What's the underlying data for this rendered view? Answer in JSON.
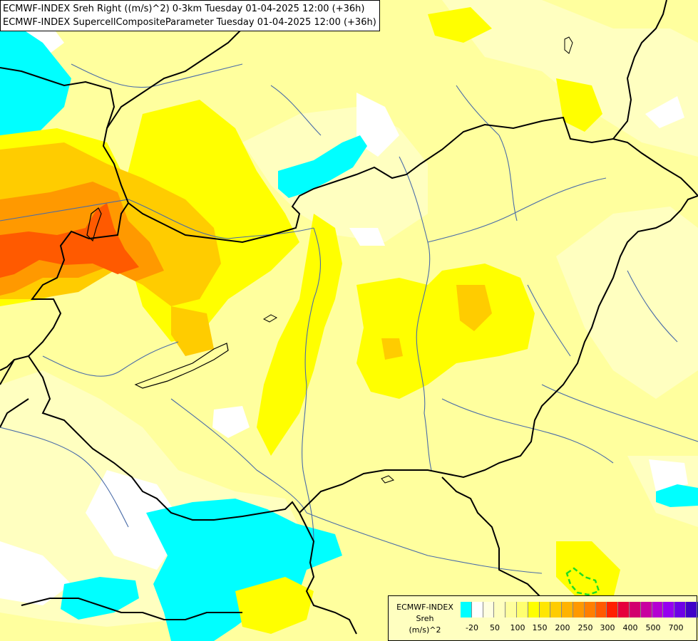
{
  "titles": {
    "line1": "ECMWF-INDEX Sreh Right ((m/s)^2) 0-3km Tuesday 01-04-2025 12:00 (+36h)",
    "line2": "ECMWF-INDEX SupercellCompositeParameter Tuesday 01-04-2025 12:00 (+36h)"
  },
  "legend": {
    "source": "ECMWF-INDEX",
    "variable": "Sreh",
    "unit": "(m/s)^2",
    "colors": [
      "#00ffff",
      "#ffffff",
      "#ffffe0",
      "#ffffc0",
      "#ffff9e",
      "#ffff70",
      "#ffff00",
      "#ffe600",
      "#ffcc00",
      "#ffb300",
      "#ff9900",
      "#ff7f00",
      "#ff5a00",
      "#ff2000",
      "#e6003c",
      "#d2006e",
      "#c800a0",
      "#b400d2",
      "#9600f0",
      "#6e00e6",
      "#4000c8",
      "#000090"
    ],
    "tick_labels": [
      "-20",
      "50",
      "100",
      "150",
      "200",
      "250",
      "300",
      "400",
      "500",
      "700"
    ]
  },
  "colors": {
    "cyan": "#00ffff",
    "pale_yellow": "#ffff9e",
    "yellow": "#ffff00",
    "orange": "#ff9900",
    "red_orange": "#ff5a00",
    "border": "#000000",
    "river": "#4a6ca8",
    "scp_contour": "#22dd22"
  }
}
